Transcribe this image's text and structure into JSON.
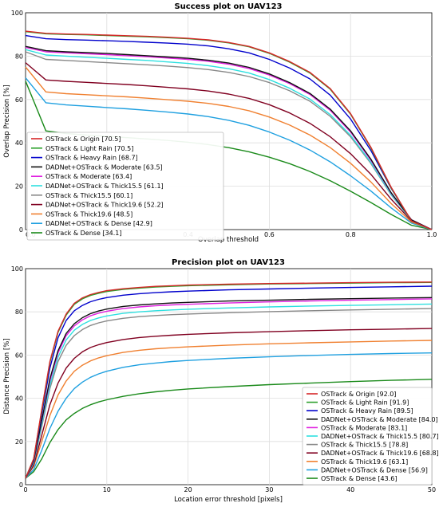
{
  "chart_data": [
    {
      "type": "line",
      "title": "Success plot on UAV123",
      "xlabel": "Overlap threshold",
      "ylabel": "Overlap Precision [%]",
      "xlim": [
        0,
        1
      ],
      "ylim": [
        0,
        100
      ],
      "xticks": [
        "0.0",
        "0.2",
        "0.4",
        "0.6",
        "0.8",
        "1.0"
      ],
      "yticks": [
        "0",
        "20",
        "40",
        "60",
        "80",
        "100"
      ],
      "grid": true,
      "legend_position": "lower-left",
      "x": [
        0,
        0.05,
        0.1,
        0.15,
        0.2,
        0.25,
        0.3,
        0.35,
        0.4,
        0.45,
        0.5,
        0.55,
        0.6,
        0.65,
        0.7,
        0.75,
        0.8,
        0.85,
        0.9,
        0.95,
        1.0
      ],
      "series": [
        {
          "name": "OSTrack & Origin [70.5]",
          "color": "#d62728",
          "values": [
            91.5,
            90.5,
            90.2,
            90.0,
            89.7,
            89.4,
            89.1,
            88.7,
            88.2,
            87.5,
            86.3,
            84.5,
            81.5,
            77.5,
            72.5,
            65.0,
            53.5,
            38.0,
            19.5,
            4.0,
            0
          ]
        },
        {
          "name": "OSTrack & Light Rain [70.5]",
          "color": "#2ca02c",
          "values": [
            91.3,
            90.3,
            90.0,
            89.8,
            89.5,
            89.2,
            88.9,
            88.5,
            88.0,
            87.3,
            86.1,
            84.3,
            81.3,
            77.2,
            72.2,
            64.7,
            53.2,
            37.7,
            19.2,
            3.9,
            0
          ]
        },
        {
          "name": "OSTrack & Heavy Rain [68.7]",
          "color": "#0000cc",
          "values": [
            89.5,
            88.0,
            87.6,
            87.4,
            87.1,
            86.8,
            86.4,
            86.0,
            85.5,
            84.7,
            83.4,
            81.5,
            78.5,
            74.5,
            69.5,
            62.0,
            51.0,
            36.5,
            19.0,
            4.0,
            0
          ]
        },
        {
          "name": "DADNet+OSTrack & Moderate [63.5]",
          "color": "#111111",
          "values": [
            84.5,
            82.5,
            82.0,
            81.6,
            81.2,
            80.7,
            80.2,
            79.6,
            79.0,
            78.1,
            76.8,
            74.8,
            71.8,
            67.8,
            62.8,
            55.5,
            45.5,
            32.5,
            17.0,
            4.5,
            0
          ]
        },
        {
          "name": "OSTrack & Moderate [63.4]",
          "color": "#e020e0",
          "values": [
            84.0,
            82.0,
            81.5,
            81.1,
            80.7,
            80.2,
            79.7,
            79.1,
            78.5,
            77.6,
            76.3,
            74.3,
            71.3,
            67.3,
            62.3,
            55.0,
            45.0,
            32.0,
            16.8,
            4.5,
            0
          ]
        },
        {
          "name": "DADNet+OSTrack & Thick15.5 [61.1]",
          "color": "#2ee0e0",
          "values": [
            83.0,
            80.5,
            80.0,
            79.5,
            79.0,
            78.5,
            78.0,
            77.3,
            76.6,
            75.6,
            74.2,
            72.2,
            69.2,
            65.2,
            60.2,
            53.0,
            43.5,
            31.0,
            16.2,
            4.3,
            0
          ]
        },
        {
          "name": "OSTrack & Thick15.5 [60.1]",
          "color": "#888888",
          "values": [
            82.0,
            78.5,
            78.0,
            77.5,
            77.0,
            76.5,
            76.0,
            75.4,
            74.7,
            73.8,
            72.5,
            70.6,
            67.8,
            64.0,
            59.2,
            52.2,
            42.8,
            30.5,
            16.0,
            4.2,
            0
          ]
        },
        {
          "name": "DADNet+OSTrack & Thick19.6 [52.2]",
          "color": "#800020",
          "values": [
            77.0,
            69.0,
            68.4,
            67.9,
            67.4,
            66.9,
            66.3,
            65.6,
            64.9,
            63.9,
            62.5,
            60.5,
            57.6,
            53.8,
            49.0,
            42.8,
            35.0,
            25.5,
            14.0,
            4.0,
            0
          ]
        },
        {
          "name": "OSTrack & Thick19.6 [48.5]",
          "color": "#f08030",
          "values": [
            75.0,
            63.5,
            62.7,
            62.2,
            61.7,
            61.2,
            60.6,
            59.9,
            59.2,
            58.2,
            56.8,
            54.8,
            51.9,
            48.2,
            43.6,
            37.8,
            30.6,
            22.0,
            12.0,
            3.5,
            0
          ]
        },
        {
          "name": "DADNet+OSTrack & Dense [42.9]",
          "color": "#1fa0e0",
          "values": [
            70.0,
            58.5,
            57.5,
            56.9,
            56.3,
            55.7,
            55.0,
            54.2,
            53.3,
            52.1,
            50.4,
            48.1,
            45.0,
            41.2,
            36.7,
            31.2,
            24.8,
            17.8,
            10.0,
            3.0,
            0
          ]
        },
        {
          "name": "OSTrack & Dense [34.1]",
          "color": "#1a8a1a",
          "values": [
            68.5,
            45.5,
            44.3,
            43.6,
            43.0,
            42.4,
            41.8,
            41.1,
            40.3,
            39.2,
            37.8,
            35.9,
            33.4,
            30.4,
            26.8,
            22.5,
            17.7,
            12.5,
            7.0,
            2.0,
            0
          ]
        }
      ]
    },
    {
      "type": "line",
      "title": "Precision plot on UAV123",
      "xlabel": "Location error threshold [pixels]",
      "ylabel": "Distance Precision [%]",
      "xlim": [
        0,
        50
      ],
      "ylim": [
        0,
        100
      ],
      "xticks": [
        "0",
        "10",
        "20",
        "30",
        "40",
        "50"
      ],
      "yticks": [
        "0",
        "20",
        "40",
        "60",
        "80",
        "100"
      ],
      "grid": true,
      "legend_position": "lower-right",
      "x": [
        0,
        1,
        2,
        3,
        4,
        5,
        6,
        7,
        8,
        9,
        10,
        12,
        14,
        16,
        18,
        20,
        25,
        30,
        35,
        40,
        45,
        50
      ],
      "series": [
        {
          "name": "OSTrack & Origin [92.0]",
          "color": "#d62728",
          "values": [
            3,
            12,
            35,
            57,
            71,
            79,
            84,
            86.5,
            88,
            89,
            89.8,
            90.7,
            91.3,
            91.8,
            92.1,
            92.4,
            92.8,
            93.1,
            93.3,
            93.5,
            93.7,
            93.8
          ]
        },
        {
          "name": "OSTrack & Light Rain [91.9]",
          "color": "#2ca02c",
          "values": [
            3,
            12,
            34.5,
            56.5,
            70.5,
            78.5,
            83.5,
            86,
            87.6,
            88.6,
            89.4,
            90.4,
            91.0,
            91.5,
            91.8,
            92.1,
            92.5,
            92.9,
            93.1,
            93.3,
            93.5,
            93.6
          ]
        },
        {
          "name": "OSTrack & Heavy Rain [89.5]",
          "color": "#0000cc",
          "values": [
            3,
            11.5,
            33,
            54,
            68,
            76,
            80.5,
            83,
            84.7,
            85.8,
            86.6,
            87.7,
            88.4,
            88.9,
            89.3,
            89.6,
            90.2,
            90.6,
            91.0,
            91.3,
            91.6,
            91.9
          ]
        },
        {
          "name": "DADNet+OSTrack & Moderate [84.0]",
          "color": "#111111",
          "values": [
            3,
            11,
            30,
            49,
            62,
            70,
            74.5,
            77.3,
            79.2,
            80.4,
            81.3,
            82.5,
            83.2,
            83.7,
            84.1,
            84.4,
            85.0,
            85.4,
            85.8,
            86.1,
            86.4,
            86.6
          ]
        },
        {
          "name": "OSTrack & Moderate [83.1]",
          "color": "#e020e0",
          "values": [
            3,
            11,
            29.5,
            48,
            61,
            69,
            73.5,
            76.3,
            78.2,
            79.4,
            80.3,
            81.5,
            82.3,
            82.8,
            83.2,
            83.5,
            84.1,
            84.6,
            85.0,
            85.4,
            85.7,
            86.0
          ]
        },
        {
          "name": "DADNet+OSTrack & Thick15.5 [80.7]",
          "color": "#2ee0e0",
          "values": [
            3,
            10.5,
            28,
            46,
            59,
            67,
            71.5,
            74.2,
            76.0,
            77.2,
            78.1,
            79.3,
            80.0,
            80.5,
            80.9,
            81.2,
            81.8,
            82.3,
            82.7,
            83.0,
            83.3,
            83.6
          ]
        },
        {
          "name": "OSTrack & Thick15.5 [78.8]",
          "color": "#888888",
          "values": [
            3,
            10,
            27,
            44.5,
            57,
            64.5,
            69,
            71.8,
            73.7,
            74.9,
            75.8,
            77.0,
            77.8,
            78.3,
            78.7,
            79.0,
            79.6,
            80.1,
            80.5,
            80.9,
            81.2,
            81.5
          ]
        },
        {
          "name": "DADNet+OSTrack & Thick19.6 [68.8]",
          "color": "#800020",
          "values": [
            3,
            9,
            23,
            37,
            47,
            54,
            58.5,
            61.5,
            63.5,
            64.8,
            65.8,
            67.2,
            68.1,
            68.7,
            69.2,
            69.6,
            70.3,
            70.8,
            71.3,
            71.7,
            72.0,
            72.3
          ]
        },
        {
          "name": "OSTrack & Thick19.6 [63.1]",
          "color": "#f08030",
          "values": [
            3,
            8.5,
            20,
            32,
            41.5,
            48,
            52.5,
            55.3,
            57.3,
            58.7,
            59.7,
            61.2,
            62.2,
            62.9,
            63.4,
            63.8,
            64.6,
            65.2,
            65.7,
            66.1,
            66.5,
            66.8
          ]
        },
        {
          "name": "DADNet+OSTrack & Dense [56.9]",
          "color": "#1fa0e0",
          "values": [
            3,
            7,
            16,
            26,
            34,
            40,
            44.5,
            47.5,
            49.7,
            51.3,
            52.5,
            54.3,
            55.5,
            56.3,
            57.0,
            57.5,
            58.5,
            59.2,
            59.8,
            60.3,
            60.7,
            61.0
          ]
        },
        {
          "name": "OSTrack & Dense [43.6]",
          "color": "#1a8a1a",
          "values": [
            3,
            6,
            12,
            19.5,
            25.5,
            30,
            33,
            35.3,
            37.0,
            38.3,
            39.3,
            40.9,
            42.1,
            43.0,
            43.7,
            44.3,
            45.4,
            46.3,
            47.0,
            47.7,
            48.3,
            48.8
          ]
        }
      ]
    }
  ]
}
